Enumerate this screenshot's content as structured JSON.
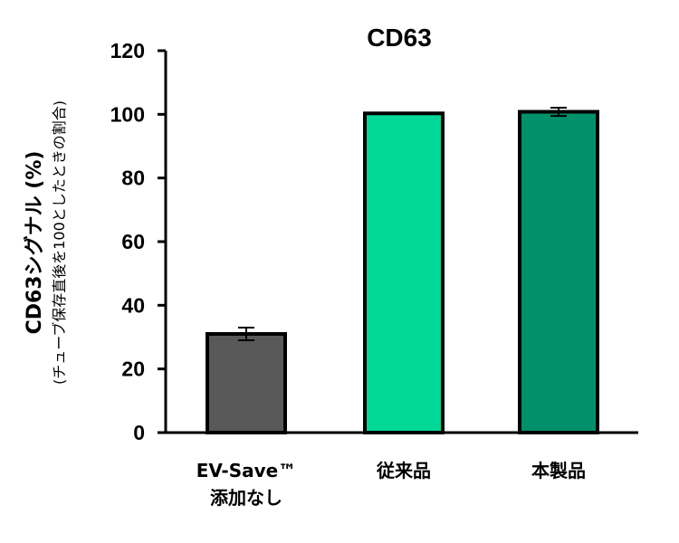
{
  "chart_data": {
    "type": "bar",
    "title": "CD63",
    "ylabel": "CD63シグナル (%)",
    "ylabel_note": "(チューブ保存直後を100としたときの割合)",
    "xlabel": "",
    "ylim": [
      0,
      120
    ],
    "yticks": [
      "0",
      "20",
      "40",
      "60",
      "80",
      "100",
      "120"
    ],
    "grid": false,
    "categories": [
      {
        "line1": "EV-Save™",
        "line2": "添加なし"
      },
      {
        "line1": "従来品",
        "line2": ""
      },
      {
        "line1": "本製品",
        "line2": ""
      }
    ],
    "values": [
      31,
      100.3,
      100.8
    ],
    "error": [
      2,
      0,
      1.3
    ],
    "colors": [
      "#595959",
      "#00d898",
      "#00916a"
    ]
  }
}
